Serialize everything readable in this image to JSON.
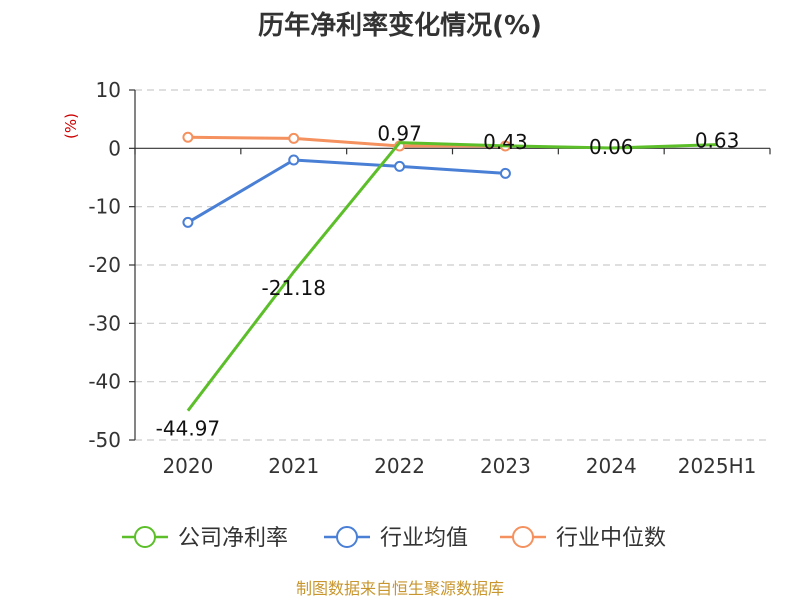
{
  "chart_data": {
    "type": "line",
    "title": "历年净利率变化情况(%)",
    "ylabel": "(%)",
    "xlabel": "",
    "categories": [
      "2020",
      "2021",
      "2022",
      "2023",
      "2024",
      "2025H1"
    ],
    "ylim": [
      -50,
      10
    ],
    "yticks": [
      10,
      0,
      -10,
      -20,
      -30,
      -40,
      -50
    ],
    "grid": true,
    "legend_position": "bottom",
    "series": [
      {
        "name": "公司净利率",
        "color": "#5cbf2a",
        "values": [
          -44.97,
          -21.18,
          0.97,
          0.43,
          0.06,
          0.63
        ],
        "labels": [
          "-44.97",
          "-21.18",
          "0.97",
          "0.43",
          "0.06",
          "0.63"
        ],
        "show_markers": false
      },
      {
        "name": "行业均值",
        "color": "#4a7fd6",
        "values": [
          -12.7,
          -2.0,
          -3.1,
          -4.3,
          null,
          null
        ],
        "show_markers": true
      },
      {
        "name": "行业中位数",
        "color": "#f4915e",
        "values": [
          1.9,
          1.7,
          0.4,
          0.4,
          null,
          null
        ],
        "show_markers": true
      }
    ],
    "source": "制图数据来自恒生聚源数据库"
  }
}
